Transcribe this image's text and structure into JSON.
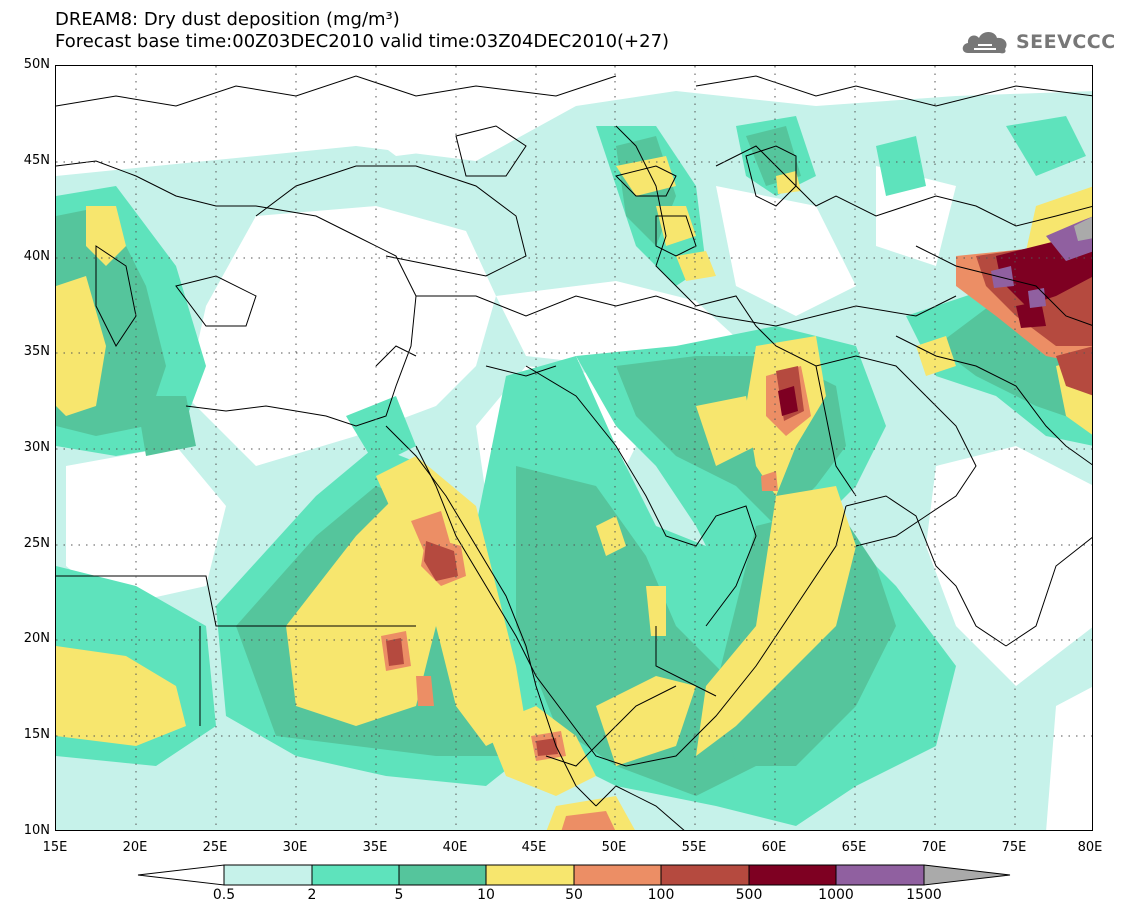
{
  "title": {
    "line1": "DREAM8: Dry dust deposition (mg/m³)",
    "line2": "Forecast base time:00Z03DEC2010 valid time:03Z04DEC2010(+27)"
  },
  "logo": {
    "text": "SEEVCCC",
    "icon": "cloud-icon"
  },
  "axes": {
    "lat_labels": [
      "50N",
      "45N",
      "40N",
      "35N",
      "30N",
      "25N",
      "20N",
      "15N",
      "10N"
    ],
    "lon_labels": [
      "15E",
      "20E",
      "25E",
      "30E",
      "35E",
      "40E",
      "45E",
      "50E",
      "55E",
      "60E",
      "65E",
      "70E",
      "75E",
      "80E"
    ]
  },
  "colorbar": {
    "labels": [
      "0.5",
      "2",
      "5",
      "10",
      "50",
      "100",
      "500",
      "1000",
      "1500"
    ],
    "colors": [
      "#c6f2ea",
      "#5ee3bc",
      "#55c59c",
      "#f7e66e",
      "#ec8e65",
      "#b54a3f",
      "#7e0022",
      "#9060a0"
    ],
    "under_color": "#ffffff",
    "over_color": "#aaaaaa"
  },
  "fill_colors": {
    "c1": "#c6f2ea",
    "c2": "#5ee3bc",
    "c3": "#55c59c",
    "c4": "#f7e66e",
    "c5": "#ec8e65",
    "c6": "#b54a3f",
    "c7": "#7e0022",
    "c8": "#9060a0"
  }
}
